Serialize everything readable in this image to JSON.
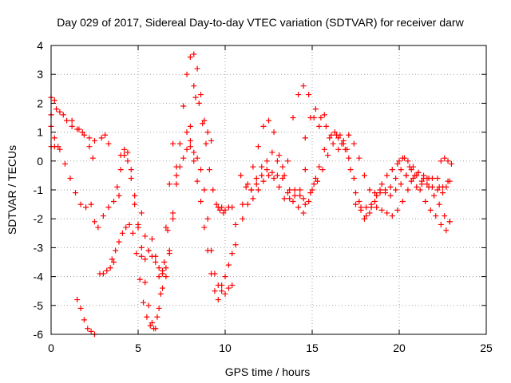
{
  "chart_data": {
    "type": "scatter",
    "title": "Day 029 of 2017, Sidereal Day-to-day VTEC variation (SDTVAR) for receiver darw",
    "xlabel": "GPS time / hours",
    "ylabel": "SDTVAR / TECUs",
    "xlim": [
      0,
      25
    ],
    "ylim": [
      -6,
      4
    ],
    "xticks": [
      0,
      5,
      10,
      15,
      20,
      25
    ],
    "yticks": [
      -6,
      -5,
      -4,
      -3,
      -2,
      -1,
      0,
      1,
      2,
      3,
      4
    ],
    "grid": true,
    "marker": "+",
    "color": "#ff0000",
    "series": [
      {
        "x": [
          0.0,
          0.3,
          0.7,
          1.2,
          1.6,
          1.9,
          2.2,
          2.4
        ],
        "y": [
          1.6,
          1.8,
          1.6,
          1.4,
          1.1,
          0.9,
          0.5,
          0.1
        ]
      },
      {
        "x": [
          0.0,
          0.2,
          0.5,
          0.9,
          1.2,
          1.5,
          1.8,
          2.2,
          2.5
        ],
        "y": [
          2.2,
          2.1,
          1.7,
          1.4,
          1.2,
          1.1,
          1.0,
          0.8,
          0.7
        ]
      },
      {
        "x": [
          0.0,
          0.2,
          0.5,
          0.8,
          1.1,
          1.4,
          1.7,
          2.0,
          2.3
        ],
        "y": [
          1.2,
          0.8,
          0.4,
          -0.1,
          -0.6,
          -1.1,
          -1.5,
          -1.6,
          -1.5
        ]
      },
      {
        "x": [
          0.0,
          0.2,
          0.4
        ],
        "y": [
          0.5,
          0.5,
          0.5
        ]
      },
      {
        "x": [
          1.5,
          1.7,
          1.9,
          2.1,
          2.3,
          2.5
        ],
        "y": [
          -4.8,
          -5.1,
          -5.5,
          -5.8,
          -5.9,
          -6.0
        ]
      },
      {
        "x": [
          2.5,
          2.7,
          3.0,
          3.3,
          3.6,
          3.9
        ],
        "y": [
          -2.1,
          -2.3,
          -1.9,
          -1.6,
          -1.4,
          -1.2
        ]
      },
      {
        "x": [
          2.9,
          3.1,
          3.3
        ],
        "y": [
          0.8,
          0.9,
          0.6
        ]
      },
      {
        "x": [
          2.8,
          3.0,
          3.2,
          3.4,
          3.6
        ],
        "y": [
          -3.9,
          -3.9,
          -3.8,
          -3.7,
          -3.5
        ]
      },
      {
        "x": [
          3.5,
          3.7,
          3.9,
          4.1,
          4.3,
          4.5,
          4.7,
          4.9,
          5.1,
          5.3,
          5.5,
          5.7,
          5.9,
          6.1,
          6.3,
          6.5,
          6.7
        ],
        "y": [
          -3.4,
          -3.1,
          -2.8,
          -2.5,
          -2.3,
          -2.2,
          -2.5,
          -3.2,
          -4.1,
          -4.9,
          -5.4,
          -5.7,
          -5.8,
          -5.4,
          -4.6,
          -3.5,
          -2.4
        ]
      },
      {
        "x": [
          4.0,
          4.2,
          4.4,
          4.6,
          4.8,
          5.0,
          5.2,
          5.4,
          5.6,
          5.8,
          6.0,
          6.2,
          6.4,
          6.6,
          6.8,
          7.0
        ],
        "y": [
          0.2,
          0.4,
          0.3,
          -0.3,
          -1.2,
          -2.2,
          -3.3,
          -4.2,
          -5.0,
          -5.6,
          -5.8,
          -5.1,
          -3.9,
          -2.3,
          -0.8,
          0.6
        ]
      },
      {
        "x": [
          3.8,
          4.0,
          4.2,
          4.4,
          4.6,
          4.8,
          5.0,
          5.2,
          5.4,
          5.6,
          5.8,
          6.0,
          6.2,
          6.4,
          6.6,
          6.8,
          7.0,
          7.2,
          7.4,
          7.6,
          7.8,
          8.0,
          8.2
        ],
        "y": [
          -0.9,
          -0.3,
          0.2,
          0.0,
          -0.6,
          -1.5,
          -2.3,
          -3.0,
          -3.4,
          -3.1,
          -2.7,
          -3.3,
          -4.0,
          -4.4,
          -4.0,
          -3.1,
          -2.0,
          -0.8,
          0.6,
          1.9,
          3.0,
          3.6,
          3.7
        ]
      },
      {
        "x": [
          5.2,
          5.4,
          5.6,
          5.8,
          6.0,
          6.2,
          6.4,
          6.6,
          6.8,
          7.0,
          7.2
        ],
        "y": [
          -1.8,
          -2.6,
          -3.1,
          -3.3,
          -3.5,
          -3.7,
          -3.8,
          -3.7,
          -3.2,
          -1.8,
          -0.2
        ]
      },
      {
        "x": [
          7.2,
          7.4,
          7.6,
          7.8,
          8.0,
          8.2,
          8.4,
          8.6,
          8.8,
          9.0,
          9.2
        ],
        "y": [
          -0.5,
          -0.2,
          0.1,
          0.4,
          1.2,
          2.6,
          3.2,
          2.3,
          1.4,
          1.0,
          0.7
        ]
      },
      {
        "x": [
          7.8,
          8.0,
          8.2,
          8.4,
          8.6,
          8.8,
          9.0,
          9.2,
          9.4,
          9.6,
          9.8,
          10.0,
          10.2,
          10.4
        ],
        "y": [
          1.0,
          0.7,
          0.3,
          0.1,
          -0.3,
          -1.0,
          -2.0,
          -3.1,
          -3.9,
          -4.3,
          -4.5,
          -4.6,
          -4.4,
          -4.3
        ]
      },
      {
        "x": [
          8.0,
          8.2,
          8.4,
          8.6,
          8.8,
          9.0,
          9.2,
          9.4,
          9.6
        ],
        "y": [
          0.5,
          0.0,
          -0.7,
          -1.4,
          -2.3,
          -3.1,
          -3.9,
          -4.5,
          -4.8
        ]
      },
      {
        "x": [
          8.3,
          8.5,
          8.7,
          8.9,
          9.1,
          9.3,
          9.5,
          9.7,
          9.9
        ],
        "y": [
          2.2,
          2.0,
          1.3,
          0.6,
          -0.3,
          -1.0,
          -1.5,
          -1.7,
          -1.8
        ]
      },
      {
        "x": [
          9.6,
          9.8,
          10.0,
          10.2,
          10.4,
          10.6
        ],
        "y": [
          -1.6,
          -1.6,
          -1.7,
          -1.6,
          -1.6,
          -2.2
        ]
      },
      {
        "x": [
          9.8,
          10.0,
          10.2,
          10.4,
          10.6
        ],
        "y": [
          -4.3,
          -4.0,
          -3.6,
          -3.2,
          -2.9
        ]
      },
      {
        "x": [
          10.9,
          11.2,
          11.5,
          11.8,
          12.1,
          12.4,
          12.7,
          13.0,
          13.3,
          13.6,
          13.9,
          14.2,
          14.5,
          14.8,
          15.1,
          15.4,
          15.7
        ],
        "y": [
          -0.5,
          -0.9,
          -1.0,
          -0.8,
          -0.5,
          -0.3,
          -0.4,
          -0.5,
          -0.2,
          0.0,
          1.5,
          2.3,
          2.6,
          2.3,
          1.5,
          1.2,
          1.6
        ]
      },
      {
        "x": [
          11.0,
          11.3,
          11.6,
          11.9,
          12.2,
          12.5,
          12.8,
          13.1,
          13.4,
          13.7,
          14.0,
          14.3,
          14.6,
          14.9,
          15.2
        ],
        "y": [
          -2.0,
          -1.5,
          -1.3,
          -1.0,
          -0.7,
          -0.5,
          -0.6,
          -0.9,
          -1.3,
          -1.3,
          -1.0,
          -1.2,
          -1.5,
          -1.1,
          -0.6
        ]
      },
      {
        "x": [
          11.0,
          11.3,
          11.6,
          11.9,
          12.2,
          12.5,
          12.8,
          13.1,
          13.4,
          13.7,
          14.0,
          14.3,
          14.6
        ],
        "y": [
          -1.5,
          -0.8,
          -0.2,
          0.5,
          1.2,
          1.4,
          1.0,
          0.2,
          -0.5,
          -1.0,
          -1.2,
          -1.0,
          -0.3
        ]
      },
      {
        "x": [
          11.5,
          11.8,
          12.1,
          12.4,
          12.7,
          13.0,
          13.3,
          13.6,
          13.9,
          14.2,
          14.5
        ],
        "y": [
          -1.0,
          -0.6,
          -0.2,
          0.0,
          0.3,
          0.0,
          -0.6,
          -1.1,
          -1.4,
          -1.6,
          -1.3
        ]
      },
      {
        "x": [
          14.6,
          14.9,
          15.2,
          15.5,
          15.8,
          16.1,
          16.4,
          16.7,
          17.0
        ],
        "y": [
          0.8,
          1.5,
          1.8,
          1.5,
          1.2,
          0.9,
          0.9,
          0.6,
          0.4
        ]
      },
      {
        "x": [
          14.5,
          14.8,
          15.1,
          15.4,
          15.7,
          16.0,
          16.3,
          16.6,
          16.9,
          17.2,
          17.5,
          17.8,
          18.1,
          18.4,
          18.7,
          19.0,
          19.3,
          19.6,
          19.9,
          20.2,
          20.5,
          20.8,
          21.1,
          21.4,
          21.7
        ],
        "y": [
          -1.8,
          -1.4,
          -0.8,
          -0.2,
          0.4,
          0.8,
          1.0,
          0.9,
          0.4,
          -0.3,
          -1.1,
          -1.7,
          -1.9,
          -1.6,
          -1.2,
          -0.8,
          -0.5,
          -0.3,
          -0.1,
          0.1,
          0.0,
          -0.2,
          -0.4,
          -0.5,
          -0.6
        ]
      },
      {
        "x": [
          15.0,
          15.3,
          15.6,
          15.9,
          16.2,
          16.5,
          16.8,
          17.1,
          17.4,
          17.7,
          18.0,
          18.3,
          18.6,
          18.9,
          19.2,
          19.5,
          19.8,
          20.1,
          20.4,
          20.7,
          21.0,
          21.3,
          21.6,
          21.9,
          22.2
        ],
        "y": [
          -1.0,
          -0.7,
          -0.3,
          0.2,
          0.6,
          0.8,
          0.6,
          0.1,
          -0.6,
          -1.4,
          -2.0,
          -1.8,
          -1.4,
          -1.1,
          -1.0,
          -0.9,
          -0.6,
          -0.3,
          -0.5,
          -0.7,
          -0.9,
          -0.8,
          -0.6,
          -0.6,
          -0.6
        ]
      },
      {
        "x": [
          16.5,
          16.8,
          17.1,
          17.4,
          17.7,
          18.0,
          18.3,
          18.6,
          18.9,
          19.2,
          19.5,
          19.8,
          20.1,
          20.4,
          20.7,
          21.0,
          21.3,
          21.6,
          21.9,
          22.2,
          22.5,
          22.8
        ],
        "y": [
          0.4,
          0.7,
          0.9,
          0.6,
          0.1,
          -0.5,
          -1.0,
          -1.1,
          -1.0,
          -1.1,
          -1.2,
          -1.0,
          -0.8,
          -0.5,
          -0.3,
          -0.5,
          -0.7,
          -0.8,
          -0.9,
          -1.0,
          -0.9,
          -0.7
        ]
      },
      {
        "x": [
          17.5,
          17.8,
          18.1,
          18.4,
          18.7,
          19.0,
          19.3,
          19.6,
          19.9,
          20.2,
          20.5,
          20.8,
          21.1,
          21.4,
          21.7,
          22.0,
          22.3,
          22.6,
          22.9
        ],
        "y": [
          -1.5,
          -1.6,
          -1.6,
          -1.5,
          -1.6,
          -1.7,
          -1.8,
          -1.9,
          -1.7,
          -1.4,
          -1.0,
          -0.6,
          -0.4,
          -0.6,
          -0.9,
          -1.2,
          -1.5,
          -1.9,
          -2.1
        ]
      },
      {
        "x": [
          20.0,
          20.3,
          20.6,
          20.9,
          21.2,
          21.5,
          21.8,
          22.1,
          22.4,
          22.7,
          22.9
        ],
        "y": [
          0.0,
          0.1,
          -0.2,
          -0.5,
          -1.0,
          -1.4,
          -1.7,
          -1.9,
          -2.2,
          -2.4,
          -2.1
        ]
      },
      {
        "x": [
          22.3,
          22.5,
          22.7,
          22.9
        ],
        "y": [
          -0.9,
          -1.1,
          -0.9,
          -0.7
        ]
      },
      {
        "x": [
          22.4,
          22.6,
          22.8,
          23.0
        ],
        "y": [
          0.0,
          0.1,
          0.0,
          -0.1
        ]
      }
    ]
  }
}
